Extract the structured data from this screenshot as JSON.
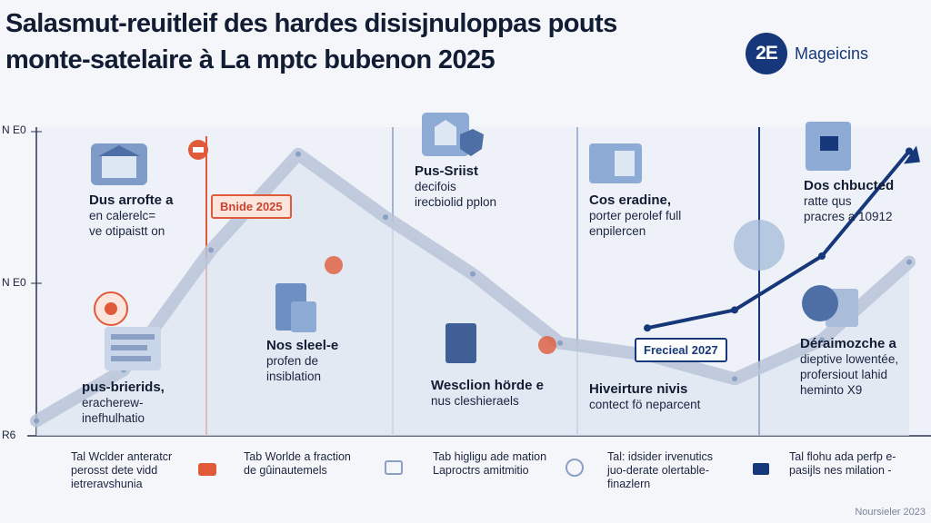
{
  "title_line1": "Salasmut-reuitleif des hardes disisjnuloppas pouts",
  "title_line2": "monte-satelaire à La mptc bubenon 2025",
  "brand": {
    "badge": "2E",
    "name": "Mageicins"
  },
  "colors": {
    "accent_red": "#e05a3a",
    "accent_blue": "#16387a",
    "trend_gray": "#b8c4d8"
  },
  "chart_data": {
    "type": "line",
    "title": "Salasmut-reuitleif des hardes disisjnuloppas pouts monte-satelaire à La mptc bubenon 2025",
    "y_tick_labels": [
      "N E0",
      "N E0",
      "R6"
    ],
    "series": [
      {
        "color": "#b8c4d8",
        "x": [
          0,
          1,
          2,
          3,
          4,
          5,
          6,
          7,
          8,
          9,
          10
        ],
        "values": [
          5,
          22,
          62,
          94,
          73,
          54,
          31,
          27,
          19,
          32,
          58
        ]
      },
      {
        "color": "#16387a",
        "x": [
          7,
          8,
          9,
          10
        ],
        "values": [
          36,
          42,
          60,
          95
        ]
      }
    ],
    "markers": [
      {
        "label": "Bnide 2025",
        "color": "#e05a3a"
      },
      {
        "label": "Frecieal 2027",
        "color": "#16387a"
      }
    ]
  },
  "annotations": [
    {
      "head": "Dus arrofte a",
      "body": [
        "en calerelc=",
        "ve otipaistt on"
      ]
    },
    {
      "head": "pus-brierids,",
      "body": [
        "eracherew-",
        "inefhulhatio"
      ]
    },
    {
      "head": "Nos sleel-e",
      "body": [
        "profen de",
        "insiblation"
      ]
    },
    {
      "head": "Pus-Sriist",
      "body": [
        "decifois",
        "irecbiolid pplon"
      ]
    },
    {
      "head": "Wesclion hörde e",
      "body": [
        "nus cleshieraels"
      ]
    },
    {
      "head": "Cos eradine,",
      "body": [
        "porter perolef full",
        "enpilercen"
      ]
    },
    {
      "head": "Hiveirture nivis",
      "body": [
        "contect fö neparcent"
      ]
    },
    {
      "head": "Dos chbucted",
      "body": [
        "ratte qus",
        "pracres a 10912"
      ]
    },
    {
      "head": "Déraimozche a",
      "body": [
        "dieptive lowentée,",
        "profersiout lahid",
        "heminto X9"
      ]
    }
  ],
  "footer": [
    {
      "icon": "none",
      "lines": [
        "Tal Wclder anteratcr",
        "perosst dete vidd",
        "ietreravshunia"
      ]
    },
    {
      "icon": "bag-icon",
      "lines": [
        "Tab Worlde a fraction",
        "de gûinautemels"
      ]
    },
    {
      "icon": "grid-icon",
      "lines": [
        "Tab higligu ade mation",
        "Laproctrs amitmitio"
      ]
    },
    {
      "icon": "globe-icon",
      "lines": [
        "Tal: idsider irvenutics",
        "juo-derate olertable-",
        "finazlern"
      ]
    },
    {
      "icon": "lock-icon",
      "lines": [
        "Tal flohu ada perfp e-",
        "pasijls nes milation -"
      ]
    }
  ],
  "corner_note": "Noursieler 2023"
}
